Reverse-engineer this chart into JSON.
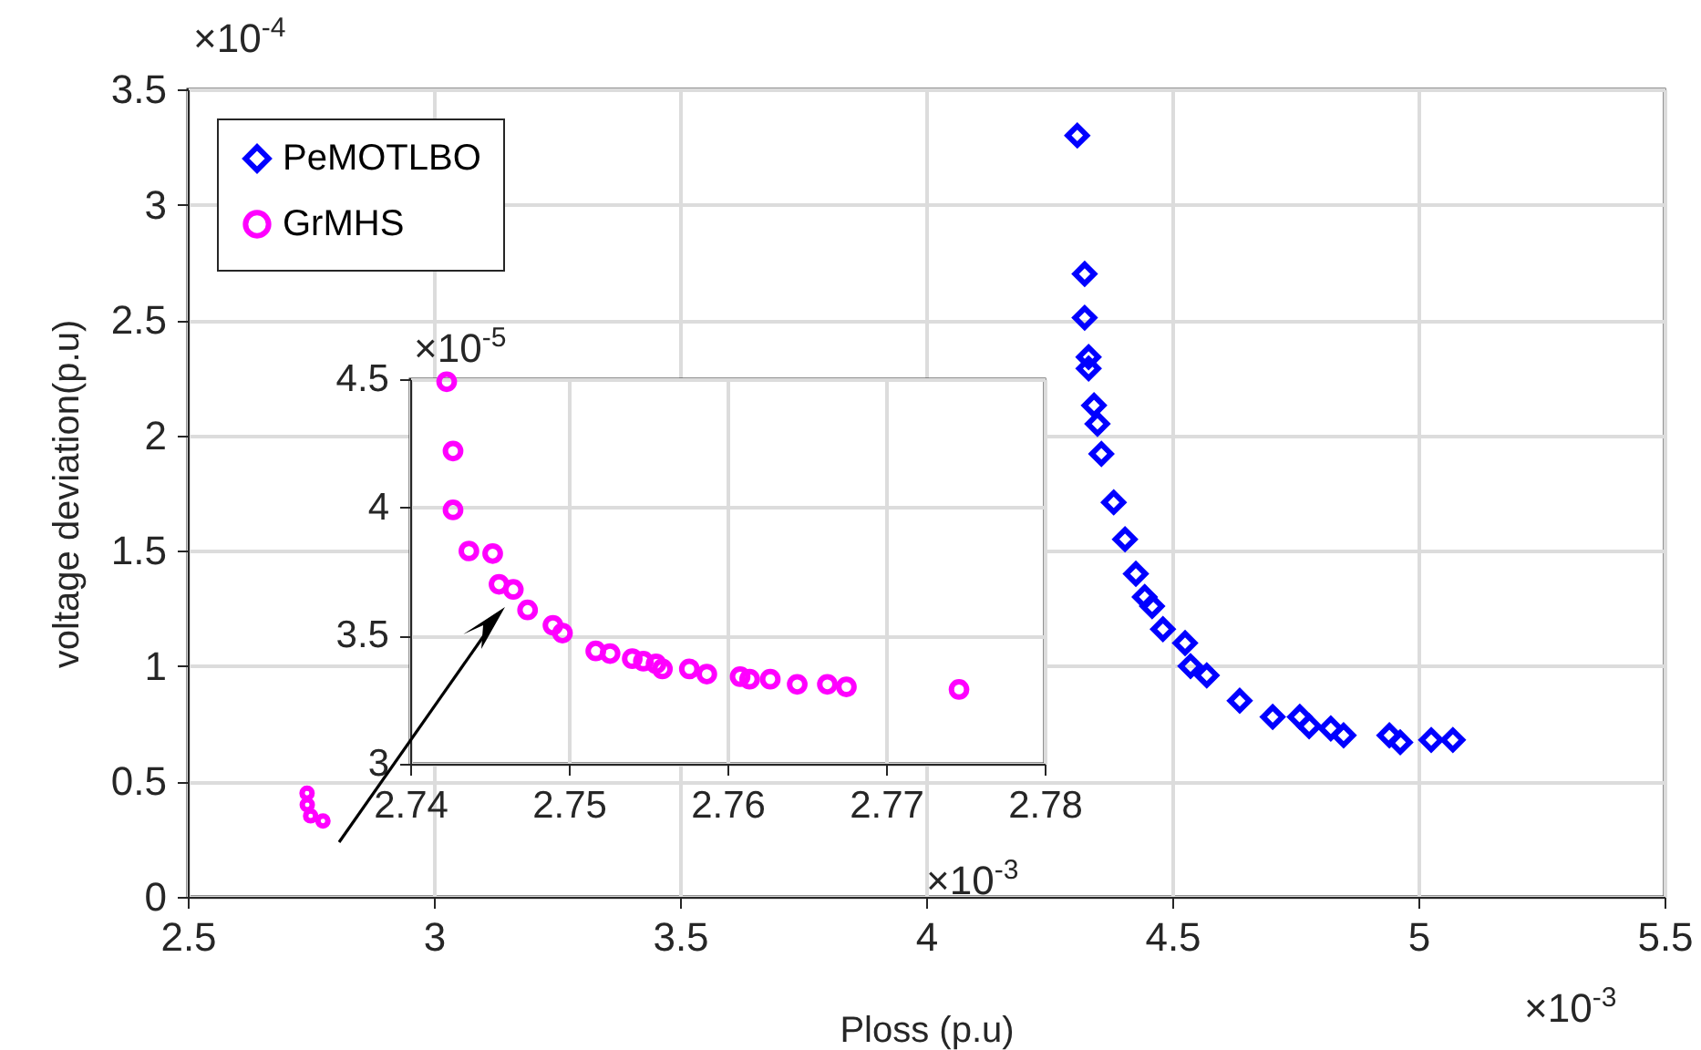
{
  "chart_data": [
    {
      "type": "scatter",
      "xlabel": "Ploss (p.u)",
      "ylabel": "voltage deviation(p.u)",
      "xlim": [
        2.5,
        5.5
      ],
      "ylim": [
        0,
        3.5
      ],
      "xticks": [
        2.5,
        3,
        3.5,
        4,
        4.5,
        5,
        5.5
      ],
      "yticks": [
        0,
        0.5,
        1,
        1.5,
        2,
        2.5,
        3,
        3.5
      ],
      "grid": true,
      "legend": "top left",
      "annotations": [
        "×10$^{-4}$",
        "×10$^{-3}$"
      ],
      "series": [
        {
          "name": "PeMOTLBO",
          "color": "#0000ff",
          "marker": "diamond",
          "x": [
            4.307,
            4.322,
            4.322,
            4.33,
            4.33,
            4.341,
            4.348,
            4.356,
            4.381,
            4.404,
            4.426,
            4.444,
            4.459,
            4.481,
            4.526,
            4.537,
            4.57,
            4.637,
            4.704,
            4.759,
            4.778,
            4.822,
            4.848,
            4.941,
            4.963,
            5.026,
            5.07
          ],
          "values": [
            3.3,
            2.7,
            2.51,
            2.34,
            2.29,
            2.13,
            2.05,
            1.92,
            1.71,
            1.55,
            1.4,
            1.3,
            1.26,
            1.16,
            1.1,
            1.0,
            0.96,
            0.85,
            0.78,
            0.78,
            0.74,
            0.73,
            0.7,
            0.7,
            0.67,
            0.68,
            0.68
          ]
        },
        {
          "name": "GrMHS",
          "color": "#ff00ff",
          "marker": "circle",
          "x": [
            2.7423,
            2.7427,
            2.7496,
            2.7746
          ],
          "values": [
            0.449,
            0.399,
            0.351,
            0.329
          ]
        }
      ]
    },
    {
      "type": "scatter",
      "xlim": [
        2.74,
        2.78
      ],
      "ylim": [
        3,
        4.5
      ],
      "xticks": [
        2.74,
        2.75,
        2.76,
        2.77,
        2.78
      ],
      "yticks": [
        3,
        3.5,
        4,
        4.5
      ],
      "grid": true,
      "annotations": [
        "×10$^{-5}$",
        "×10$^{-3}$"
      ],
      "series": [
        {
          "color": "#ff00ff",
          "marker": "circle",
          "x": [
            2.7423,
            2.7427,
            2.7427,
            2.7437,
            2.7452,
            2.7456,
            2.7465,
            2.7474,
            2.749,
            2.7496,
            2.7517,
            2.7526,
            2.754,
            2.7547,
            2.7555,
            2.7559,
            2.7576,
            2.7587,
            2.7608,
            2.7614,
            2.7627,
            2.7644,
            2.7663,
            2.7675,
            2.7746
          ],
          "values": [
            4.49,
            4.22,
            3.99,
            3.83,
            3.82,
            3.7,
            3.68,
            3.6,
            3.54,
            3.51,
            3.44,
            3.43,
            3.41,
            3.4,
            3.39,
            3.37,
            3.37,
            3.35,
            3.34,
            3.33,
            3.33,
            3.31,
            3.31,
            3.3,
            3.29
          ]
        }
      ]
    }
  ]
}
